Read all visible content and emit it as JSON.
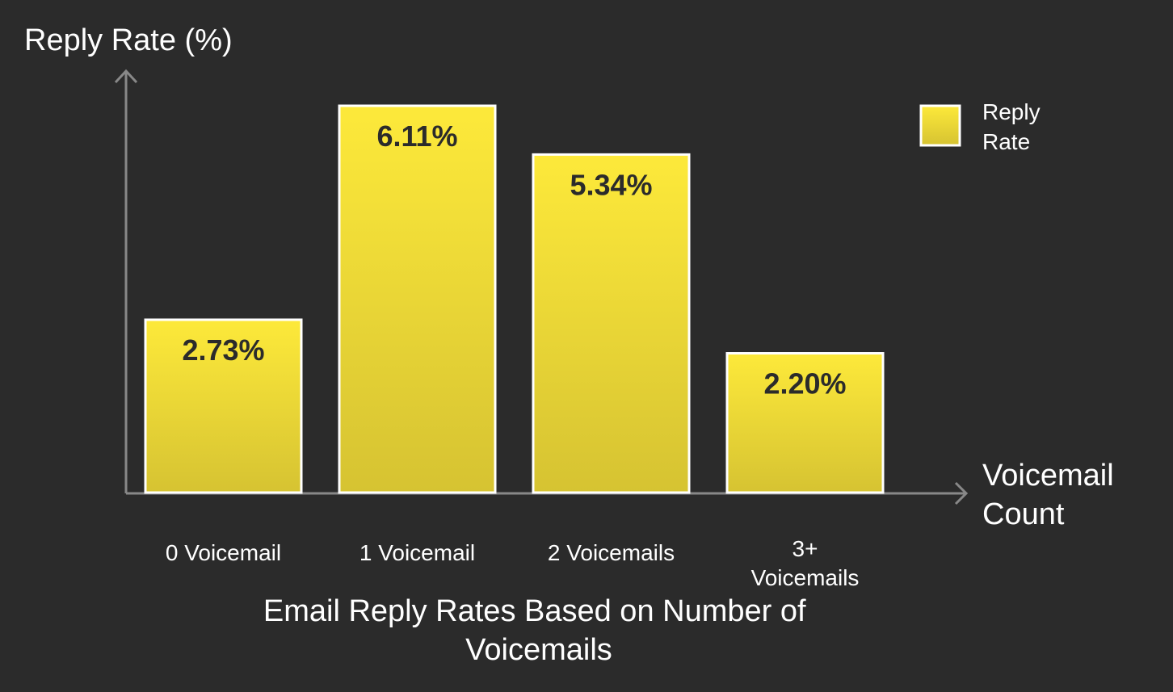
{
  "chart_data": {
    "type": "bar",
    "title": "Email Reply Rates Based on Number of Voicemails",
    "title_lines": [
      "Email Reply Rates Based on Number of",
      "Voicemails"
    ],
    "ylabel": "Reply Rate (%)",
    "xlabel": "Voicemail Count",
    "xlabel_lines": [
      "Voicemail",
      "Count"
    ],
    "categories": [
      "0 Voicemail",
      "1 Voicemail",
      "2 Voicemails",
      "3+ Voicemails"
    ],
    "category_lines": [
      [
        "0 Voicemail"
      ],
      [
        "1 Voicemail"
      ],
      [
        "2 Voicemails"
      ],
      [
        "3+",
        "Voicemails"
      ]
    ],
    "series": [
      {
        "name": "Reply Rate",
        "values": [
          2.73,
          6.11,
          5.34,
          2.2
        ],
        "labels": [
          "2.73%",
          "6.11%",
          "5.34%",
          "2.20%"
        ]
      }
    ],
    "legend_lines": [
      "Reply",
      "Rate"
    ],
    "legend_position": "top-right",
    "ylim": [
      0,
      6.6
    ],
    "grid": false,
    "colors": {
      "background": "#2b2b2b",
      "bar_top": "#fde93a",
      "bar_bottom": "#d6c332",
      "bar_border": "#ffffff",
      "axis": "#888888",
      "text": "#ffffff",
      "value_text": "#2b2b2b"
    }
  }
}
